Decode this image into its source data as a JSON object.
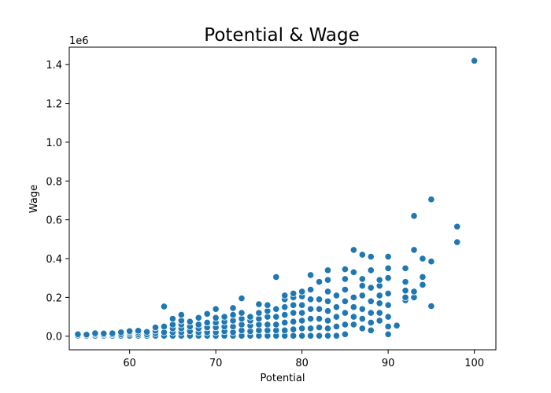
{
  "chart_data": {
    "type": "scatter",
    "title": "Potential & Wage",
    "xlabel": "Potential",
    "ylabel": "Wage",
    "y_offset_label": "1e6",
    "xlim": [
      53,
      102.5
    ],
    "ylim": [
      -0.07,
      1.49
    ],
    "x_ticks": [
      60,
      70,
      80,
      90,
      100
    ],
    "y_ticks": [
      0.0,
      0.2,
      0.4,
      0.6,
      0.8,
      1.0,
      1.2,
      1.4
    ],
    "y_tick_labels": [
      "0.0",
      "0.2",
      "0.4",
      "0.6",
      "0.8",
      "1.0",
      "1.2",
      "1.4"
    ],
    "x_tick_labels": [
      "60",
      "70",
      "80",
      "90",
      "100"
    ],
    "grid": false,
    "marker_color": "#1f77b4",
    "series": [
      {
        "points": [
          [
            54,
            0.003
          ],
          [
            54,
            0.01
          ],
          [
            55,
            0.002
          ],
          [
            55,
            0.008
          ],
          [
            56,
            0.002
          ],
          [
            56,
            0.01
          ],
          [
            56,
            0.015
          ],
          [
            57,
            0.002
          ],
          [
            57,
            0.008
          ],
          [
            57,
            0.014
          ],
          [
            58,
            0.002
          ],
          [
            58,
            0.009
          ],
          [
            58,
            0.015
          ],
          [
            59,
            0.002
          ],
          [
            59,
            0.01
          ],
          [
            59,
            0.02
          ],
          [
            60,
            0.002
          ],
          [
            60,
            0.012
          ],
          [
            60,
            0.02
          ],
          [
            60,
            0.026
          ],
          [
            61,
            0.002
          ],
          [
            61,
            0.01
          ],
          [
            61,
            0.02
          ],
          [
            61,
            0.028
          ],
          [
            62,
            0.002
          ],
          [
            62,
            0.01
          ],
          [
            62,
            0.022
          ],
          [
            63,
            0.002
          ],
          [
            63,
            0.015
          ],
          [
            63,
            0.028
          ],
          [
            63,
            0.045
          ],
          [
            64,
            0.002
          ],
          [
            64,
            0.02
          ],
          [
            64,
            0.05
          ],
          [
            64,
            0.153
          ],
          [
            65,
            0.002
          ],
          [
            65,
            0.02
          ],
          [
            65,
            0.04
          ],
          [
            65,
            0.06
          ],
          [
            65,
            0.09
          ],
          [
            66,
            0.002
          ],
          [
            66,
            0.02
          ],
          [
            66,
            0.04
          ],
          [
            66,
            0.06
          ],
          [
            66,
            0.08
          ],
          [
            66,
            0.11
          ],
          [
            67,
            0.002
          ],
          [
            67,
            0.025
          ],
          [
            67,
            0.05
          ],
          [
            67,
            0.075
          ],
          [
            68,
            0.002
          ],
          [
            68,
            0.02
          ],
          [
            68,
            0.04
          ],
          [
            68,
            0.06
          ],
          [
            68,
            0.095
          ],
          [
            69,
            0.002
          ],
          [
            69,
            0.02
          ],
          [
            69,
            0.045
          ],
          [
            69,
            0.07
          ],
          [
            69,
            0.115
          ],
          [
            70,
            0.002
          ],
          [
            70,
            0.02
          ],
          [
            70,
            0.045
          ],
          [
            70,
            0.07
          ],
          [
            70,
            0.095
          ],
          [
            70,
            0.14
          ],
          [
            71,
            0.002
          ],
          [
            71,
            0.025
          ],
          [
            71,
            0.05
          ],
          [
            71,
            0.075
          ],
          [
            71,
            0.1
          ],
          [
            72,
            0.002
          ],
          [
            72,
            0.02
          ],
          [
            72,
            0.05
          ],
          [
            72,
            0.08
          ],
          [
            72,
            0.11
          ],
          [
            72,
            0.145
          ],
          [
            73,
            0.002
          ],
          [
            73,
            0.03
          ],
          [
            73,
            0.06
          ],
          [
            73,
            0.09
          ],
          [
            73,
            0.12
          ],
          [
            73,
            0.195
          ],
          [
            74,
            0.002
          ],
          [
            74,
            0.025
          ],
          [
            74,
            0.055
          ],
          [
            74,
            0.08
          ],
          [
            74,
            0.1
          ],
          [
            75,
            0.002
          ],
          [
            75,
            0.03
          ],
          [
            75,
            0.06
          ],
          [
            75,
            0.09
          ],
          [
            75,
            0.12
          ],
          [
            75,
            0.165
          ],
          [
            76,
            0.002
          ],
          [
            76,
            0.03
          ],
          [
            76,
            0.06
          ],
          [
            76,
            0.1
          ],
          [
            76,
            0.13
          ],
          [
            76,
            0.16
          ],
          [
            77,
            0.002
          ],
          [
            77,
            0.03
          ],
          [
            77,
            0.06
          ],
          [
            77,
            0.1
          ],
          [
            77,
            0.14
          ],
          [
            77,
            0.305
          ],
          [
            78,
            0.002
          ],
          [
            78,
            0.03
          ],
          [
            78,
            0.07
          ],
          [
            78,
            0.11
          ],
          [
            78,
            0.15
          ],
          [
            78,
            0.19
          ],
          [
            78,
            0.21
          ],
          [
            79,
            0.002
          ],
          [
            79,
            0.035
          ],
          [
            79,
            0.075
          ],
          [
            79,
            0.12
          ],
          [
            79,
            0.16
          ],
          [
            79,
            0.2
          ],
          [
            79,
            0.22
          ],
          [
            80,
            0.002
          ],
          [
            80,
            0.04
          ],
          [
            80,
            0.08
          ],
          [
            80,
            0.12
          ],
          [
            80,
            0.16
          ],
          [
            80,
            0.205
          ],
          [
            80,
            0.23
          ],
          [
            81,
            0.002
          ],
          [
            81,
            0.04
          ],
          [
            81,
            0.09
          ],
          [
            81,
            0.14
          ],
          [
            81,
            0.19
          ],
          [
            81,
            0.24
          ],
          [
            81,
            0.315
          ],
          [
            82,
            0.002
          ],
          [
            82,
            0.045
          ],
          [
            82,
            0.09
          ],
          [
            82,
            0.14
          ],
          [
            82,
            0.19
          ],
          [
            82,
            0.28
          ],
          [
            83,
            0.002
          ],
          [
            83,
            0.04
          ],
          [
            83,
            0.08
          ],
          [
            83,
            0.13
          ],
          [
            83,
            0.18
          ],
          [
            83,
            0.23
          ],
          [
            83,
            0.29
          ],
          [
            83,
            0.34
          ],
          [
            84,
            0.002
          ],
          [
            84,
            0.05
          ],
          [
            84,
            0.1
          ],
          [
            84,
            0.15
          ],
          [
            84,
            0.21
          ],
          [
            85,
            0.01
          ],
          [
            85,
            0.06
          ],
          [
            85,
            0.12
          ],
          [
            85,
            0.18
          ],
          [
            85,
            0.24
          ],
          [
            85,
            0.295
          ],
          [
            85,
            0.345
          ],
          [
            86,
            0.06
          ],
          [
            86,
            0.1
          ],
          [
            86,
            0.15
          ],
          [
            86,
            0.2
          ],
          [
            86,
            0.33
          ],
          [
            86,
            0.445
          ],
          [
            87,
            0.04
          ],
          [
            87,
            0.09
          ],
          [
            87,
            0.14
          ],
          [
            87,
            0.21
          ],
          [
            87,
            0.26
          ],
          [
            87,
            0.295
          ],
          [
            87,
            0.42
          ],
          [
            88,
            0.03
          ],
          [
            88,
            0.07
          ],
          [
            88,
            0.12
          ],
          [
            88,
            0.18
          ],
          [
            88,
            0.25
          ],
          [
            88,
            0.34
          ],
          [
            88,
            0.41
          ],
          [
            89,
            0.08
          ],
          [
            89,
            0.12
          ],
          [
            89,
            0.17
          ],
          [
            89,
            0.21
          ],
          [
            89,
            0.26
          ],
          [
            89,
            0.29
          ],
          [
            90,
            0.01
          ],
          [
            90,
            0.05
          ],
          [
            90,
            0.1
          ],
          [
            90,
            0.16
          ],
          [
            90,
            0.22
          ],
          [
            90,
            0.3
          ],
          [
            90,
            0.35
          ],
          [
            90,
            0.41
          ],
          [
            91,
            0.055
          ],
          [
            92,
            0.185
          ],
          [
            92,
            0.2
          ],
          [
            92,
            0.235
          ],
          [
            92,
            0.28
          ],
          [
            92,
            0.35
          ],
          [
            93,
            0.2
          ],
          [
            93,
            0.23
          ],
          [
            93,
            0.445
          ],
          [
            93,
            0.62
          ],
          [
            94,
            0.265
          ],
          [
            94,
            0.305
          ],
          [
            94,
            0.4
          ],
          [
            95,
            0.155
          ],
          [
            95,
            0.385
          ],
          [
            95,
            0.705
          ],
          [
            98,
            0.485
          ],
          [
            98,
            0.565
          ],
          [
            100,
            1.42
          ]
        ]
      }
    ]
  }
}
